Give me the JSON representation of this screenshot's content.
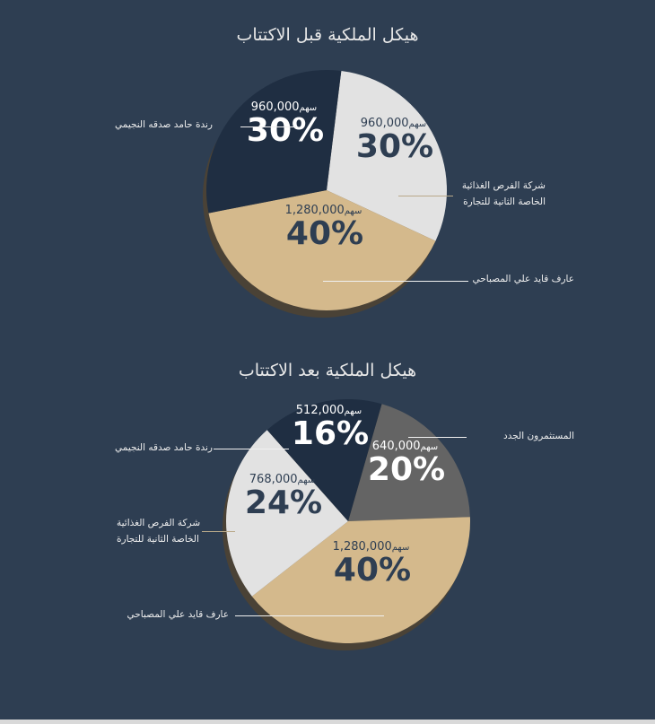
{
  "chart_data": [
    {
      "type": "pie",
      "title": "هيكل الملكية قبل الاكتتاب",
      "slices": [
        {
          "label_lines": [
            "شركة الفرص الغذائية",
            "الخاصة الثانية للتجارة"
          ],
          "shares": "960,000",
          "unit": "سهم",
          "percent": 30,
          "percent_label": "30%",
          "color": "#e2e2e2",
          "text_color": "#2e3e52"
        },
        {
          "label_lines": [
            "عارف قايد علي المصباحي"
          ],
          "shares": "1,280,000",
          "unit": "سهم",
          "percent": 40,
          "percent_label": "40%",
          "color": "#d4b98c",
          "text_color": "#2e3e52"
        },
        {
          "label_lines": [
            "رندة حامد صدقه النجيمي"
          ],
          "shares": "960,000",
          "unit": "سهم",
          "percent": 30,
          "percent_label": "30%",
          "color": "#1f2e42",
          "text_color": "#ffffff"
        }
      ]
    },
    {
      "type": "pie",
      "title": "هيكل الملكية بعد الاكتتاب",
      "slices": [
        {
          "label_lines": [
            "المستثمرون الجدد"
          ],
          "shares": "640,000",
          "unit": "سهم",
          "percent": 20,
          "percent_label": "20%",
          "color": "#646464",
          "text_color": "#ffffff"
        },
        {
          "label_lines": [
            "عارف قايد علي المصباحي"
          ],
          "shares": "1,280,000",
          "unit": "سهم",
          "percent": 40,
          "percent_label": "40%",
          "color": "#d4b98c",
          "text_color": "#2e3e52"
        },
        {
          "label_lines": [
            "شركة الفرص الغذائية",
            "الخاصة الثانية للتجارة"
          ],
          "shares": "768,000",
          "unit": "سهم",
          "percent": 24,
          "percent_label": "24%",
          "color": "#e2e2e2",
          "text_color": "#2e3e52"
        },
        {
          "label_lines": [
            "رندة حامد صدقه النجيمي"
          ],
          "shares": "512,000",
          "unit": "سهم",
          "percent": 16,
          "percent_label": "16%",
          "color": "#1f2e42",
          "text_color": "#ffffff"
        }
      ]
    }
  ],
  "colors": {
    "background": "#2e3e52",
    "shadow": "#4a4236"
  }
}
